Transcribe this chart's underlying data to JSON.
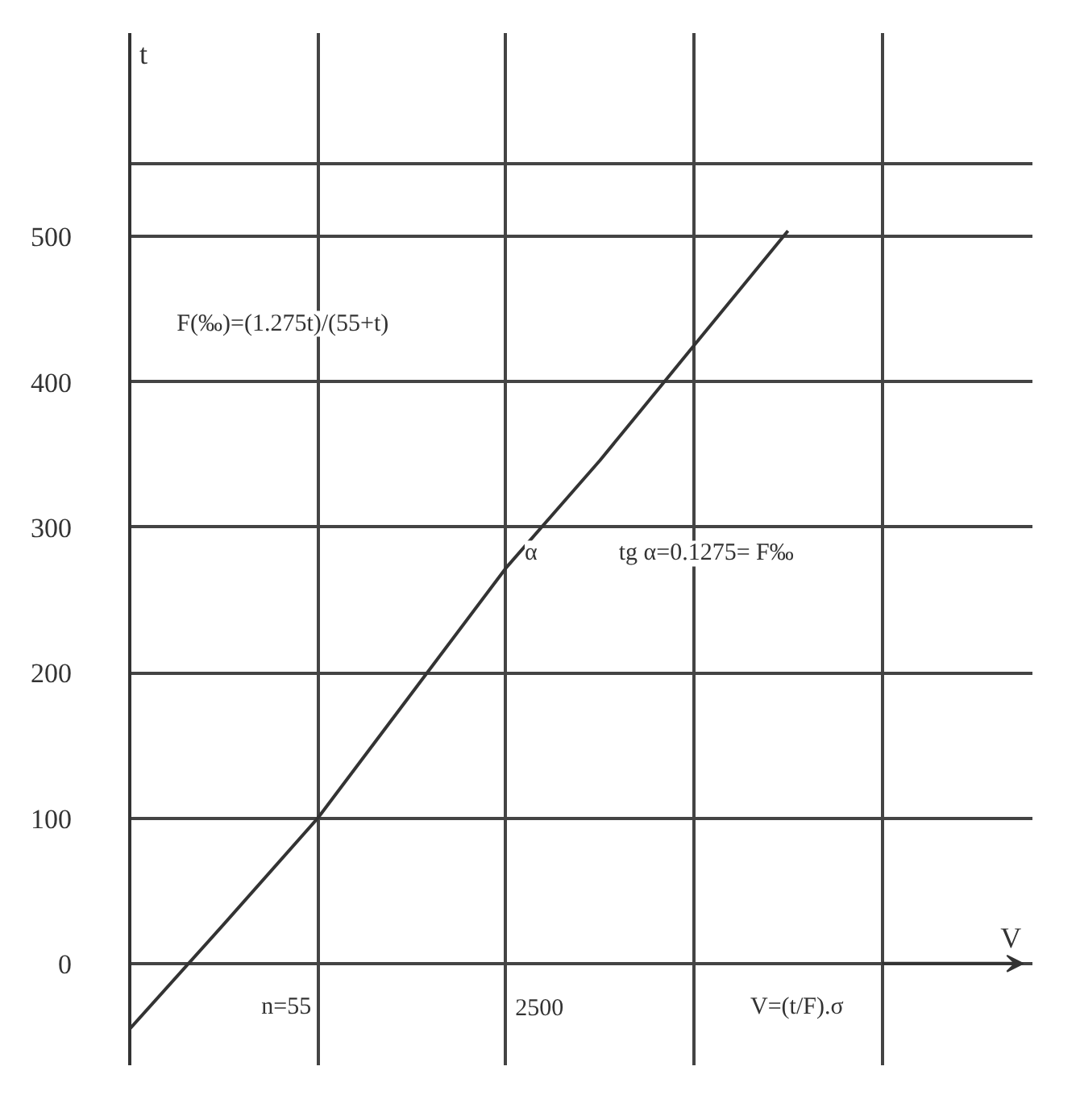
{
  "chart_data": {
    "type": "line",
    "xlabel": "V",
    "ylabel": "t",
    "categories": [
      null,
      null,
      null,
      null,
      null,
      null,
      null,
      null,
      null
    ],
    "series": [
      {
        "color": "#333333",
        "values": [
          -45,
          27,
          100,
          186,
          272,
          346,
          425,
          504,
          null
        ]
      }
    ],
    "ylim": [
      -70,
      640
    ],
    "yticks": [
      0,
      100,
      200,
      300,
      400,
      500,
      {
        "value": 550,
        "label": null
      }
    ],
    "tick_labels": "y",
    "grid": true,
    "marker": "none",
    "line_style": "solid",
    "annotations": [
      "F(‰)=(1.275t)/(55+t)",
      "α",
      "tg α=0.1275= F‰",
      "n=55",
      "2500",
      "V=(t/F).σ"
    ]
  }
}
